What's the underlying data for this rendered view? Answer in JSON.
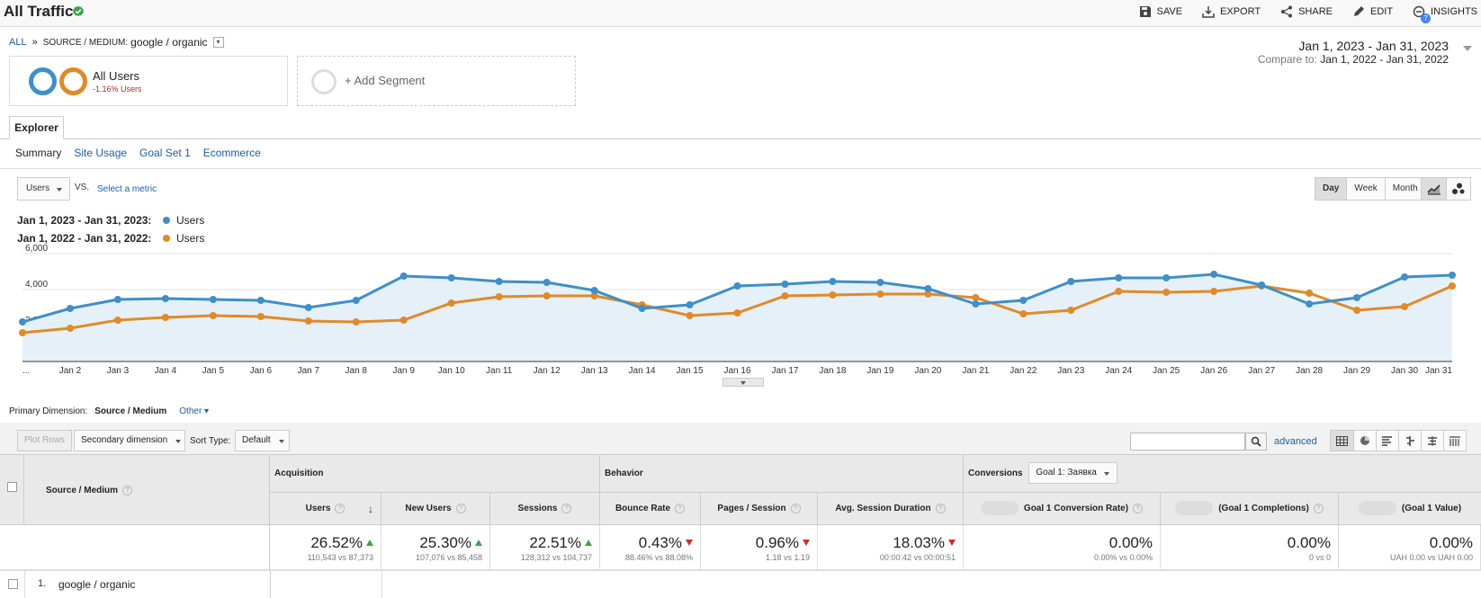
{
  "header": {
    "title": "All Traffic",
    "actions": [
      "SAVE",
      "EXPORT",
      "SHARE",
      "EDIT",
      "INSIGHTS"
    ],
    "insights_count": "7"
  },
  "breadcrumb": {
    "all": "ALL",
    "sep": "»",
    "label": "SOURCE / MEDIUM:",
    "value": "google / organic"
  },
  "date": {
    "range": "Jan 1, 2023 - Jan 31, 2023",
    "compare_label": "Compare to:",
    "compare_range": "Jan 1, 2022 - Jan 31, 2022"
  },
  "segments": {
    "name": "All Users",
    "delta": "-1.16% Users",
    "add": "+ Add Segment"
  },
  "tabs": {
    "explorer": "Explorer",
    "subtabs": [
      "Summary",
      "Site Usage",
      "Goal Set 1",
      "Ecommerce"
    ]
  },
  "chart_controls": {
    "metric": "Users",
    "vs": "VS.",
    "select_metric": "Select a metric",
    "granularity": [
      "Day",
      "Week",
      "Month"
    ],
    "active": "Day"
  },
  "legend": [
    {
      "period": "Jan 1, 2023 - Jan 31, 2023:",
      "series": "Users",
      "color": "#3f8fc8"
    },
    {
      "period": "Jan 1, 2022 - Jan 31, 2022:",
      "series": "Users",
      "color": "#e08a28"
    }
  ],
  "chart_data": {
    "type": "line",
    "x": [
      "...",
      "Jan 2",
      "Jan 3",
      "Jan 4",
      "Jan 5",
      "Jan 6",
      "Jan 7",
      "Jan 8",
      "Jan 9",
      "Jan 10",
      "Jan 11",
      "Jan 12",
      "Jan 13",
      "Jan 14",
      "Jan 15",
      "Jan 16",
      "Jan 17",
      "Jan 18",
      "Jan 19",
      "Jan 20",
      "Jan 21",
      "Jan 22",
      "Jan 23",
      "Jan 24",
      "Jan 25",
      "Jan 26",
      "Jan 27",
      "Jan 28",
      "Jan 29",
      "Jan 30",
      "Jan 31"
    ],
    "yticks": [
      "6,000",
      "4,000",
      "2,000"
    ],
    "ylim": [
      0,
      6000
    ],
    "series": [
      {
        "name": "Users",
        "color": "#3f8fc8",
        "values": [
          2200,
          2950,
          3450,
          3500,
          3450,
          3400,
          3000,
          3400,
          4750,
          4650,
          4450,
          4400,
          3950,
          2950,
          3150,
          4200,
          4300,
          4450,
          4400,
          4050,
          3200,
          3400,
          4450,
          4650,
          4650,
          4850,
          4250,
          3200,
          3550,
          4700,
          4800
        ]
      },
      {
        "name": "Users",
        "color": "#e08a28",
        "values": [
          1600,
          1850,
          2300,
          2450,
          2550,
          2500,
          2250,
          2200,
          2300,
          3250,
          3600,
          3650,
          3650,
          3150,
          2550,
          2700,
          3650,
          3700,
          3750,
          3750,
          3550,
          2650,
          2850,
          3900,
          3850,
          3900,
          4200,
          3800,
          2850,
          3050,
          4200
        ]
      }
    ]
  },
  "primary_dimension": {
    "label": "Primary Dimension:",
    "value": "Source / Medium",
    "other": "Other"
  },
  "toolbar": {
    "plot_rows": "Plot Rows",
    "secondary": "Secondary dimension",
    "sort_label": "Sort Type:",
    "sort_value": "Default",
    "advanced": "advanced"
  },
  "table": {
    "dimension": "Source / Medium",
    "groups": {
      "acquisition": "Acquisition",
      "behavior": "Behavior",
      "conversions": "Conversions",
      "goal": "Goal 1: Заявка"
    },
    "columns": [
      "Users",
      "New Users",
      "Sessions",
      "Bounce Rate",
      "Pages / Session",
      "Avg. Session Duration",
      "Goal 1 Conversion Rate)",
      "(Goal 1 Completions)",
      "(Goal 1 Value)"
    ],
    "totals": [
      {
        "value": "26.52%",
        "sub": "110,543 vs 87,373",
        "dir": "up"
      },
      {
        "value": "25.30%",
        "sub": "107,076 vs 85,458",
        "dir": "up"
      },
      {
        "value": "22.51%",
        "sub": "128,312 vs 104,737",
        "dir": "up"
      },
      {
        "value": "0.43%",
        "sub": "88.46% vs 88.08%",
        "dir": "down"
      },
      {
        "value": "0.96%",
        "sub": "1.18 vs 1.19",
        "dir": "down"
      },
      {
        "value": "18.03%",
        "sub": "00:00:42 vs 00:00:51",
        "dir": "down"
      },
      {
        "value": "0.00%",
        "sub": "0.00% vs 0.00%",
        "dir": ""
      },
      {
        "value": "0.00%",
        "sub": "0 vs 0",
        "dir": ""
      },
      {
        "value": "0.00%",
        "sub": "UAH 0.00 vs UAH 0.00",
        "dir": ""
      }
    ],
    "rows": [
      {
        "num": "1.",
        "label": "google / organic"
      }
    ]
  }
}
